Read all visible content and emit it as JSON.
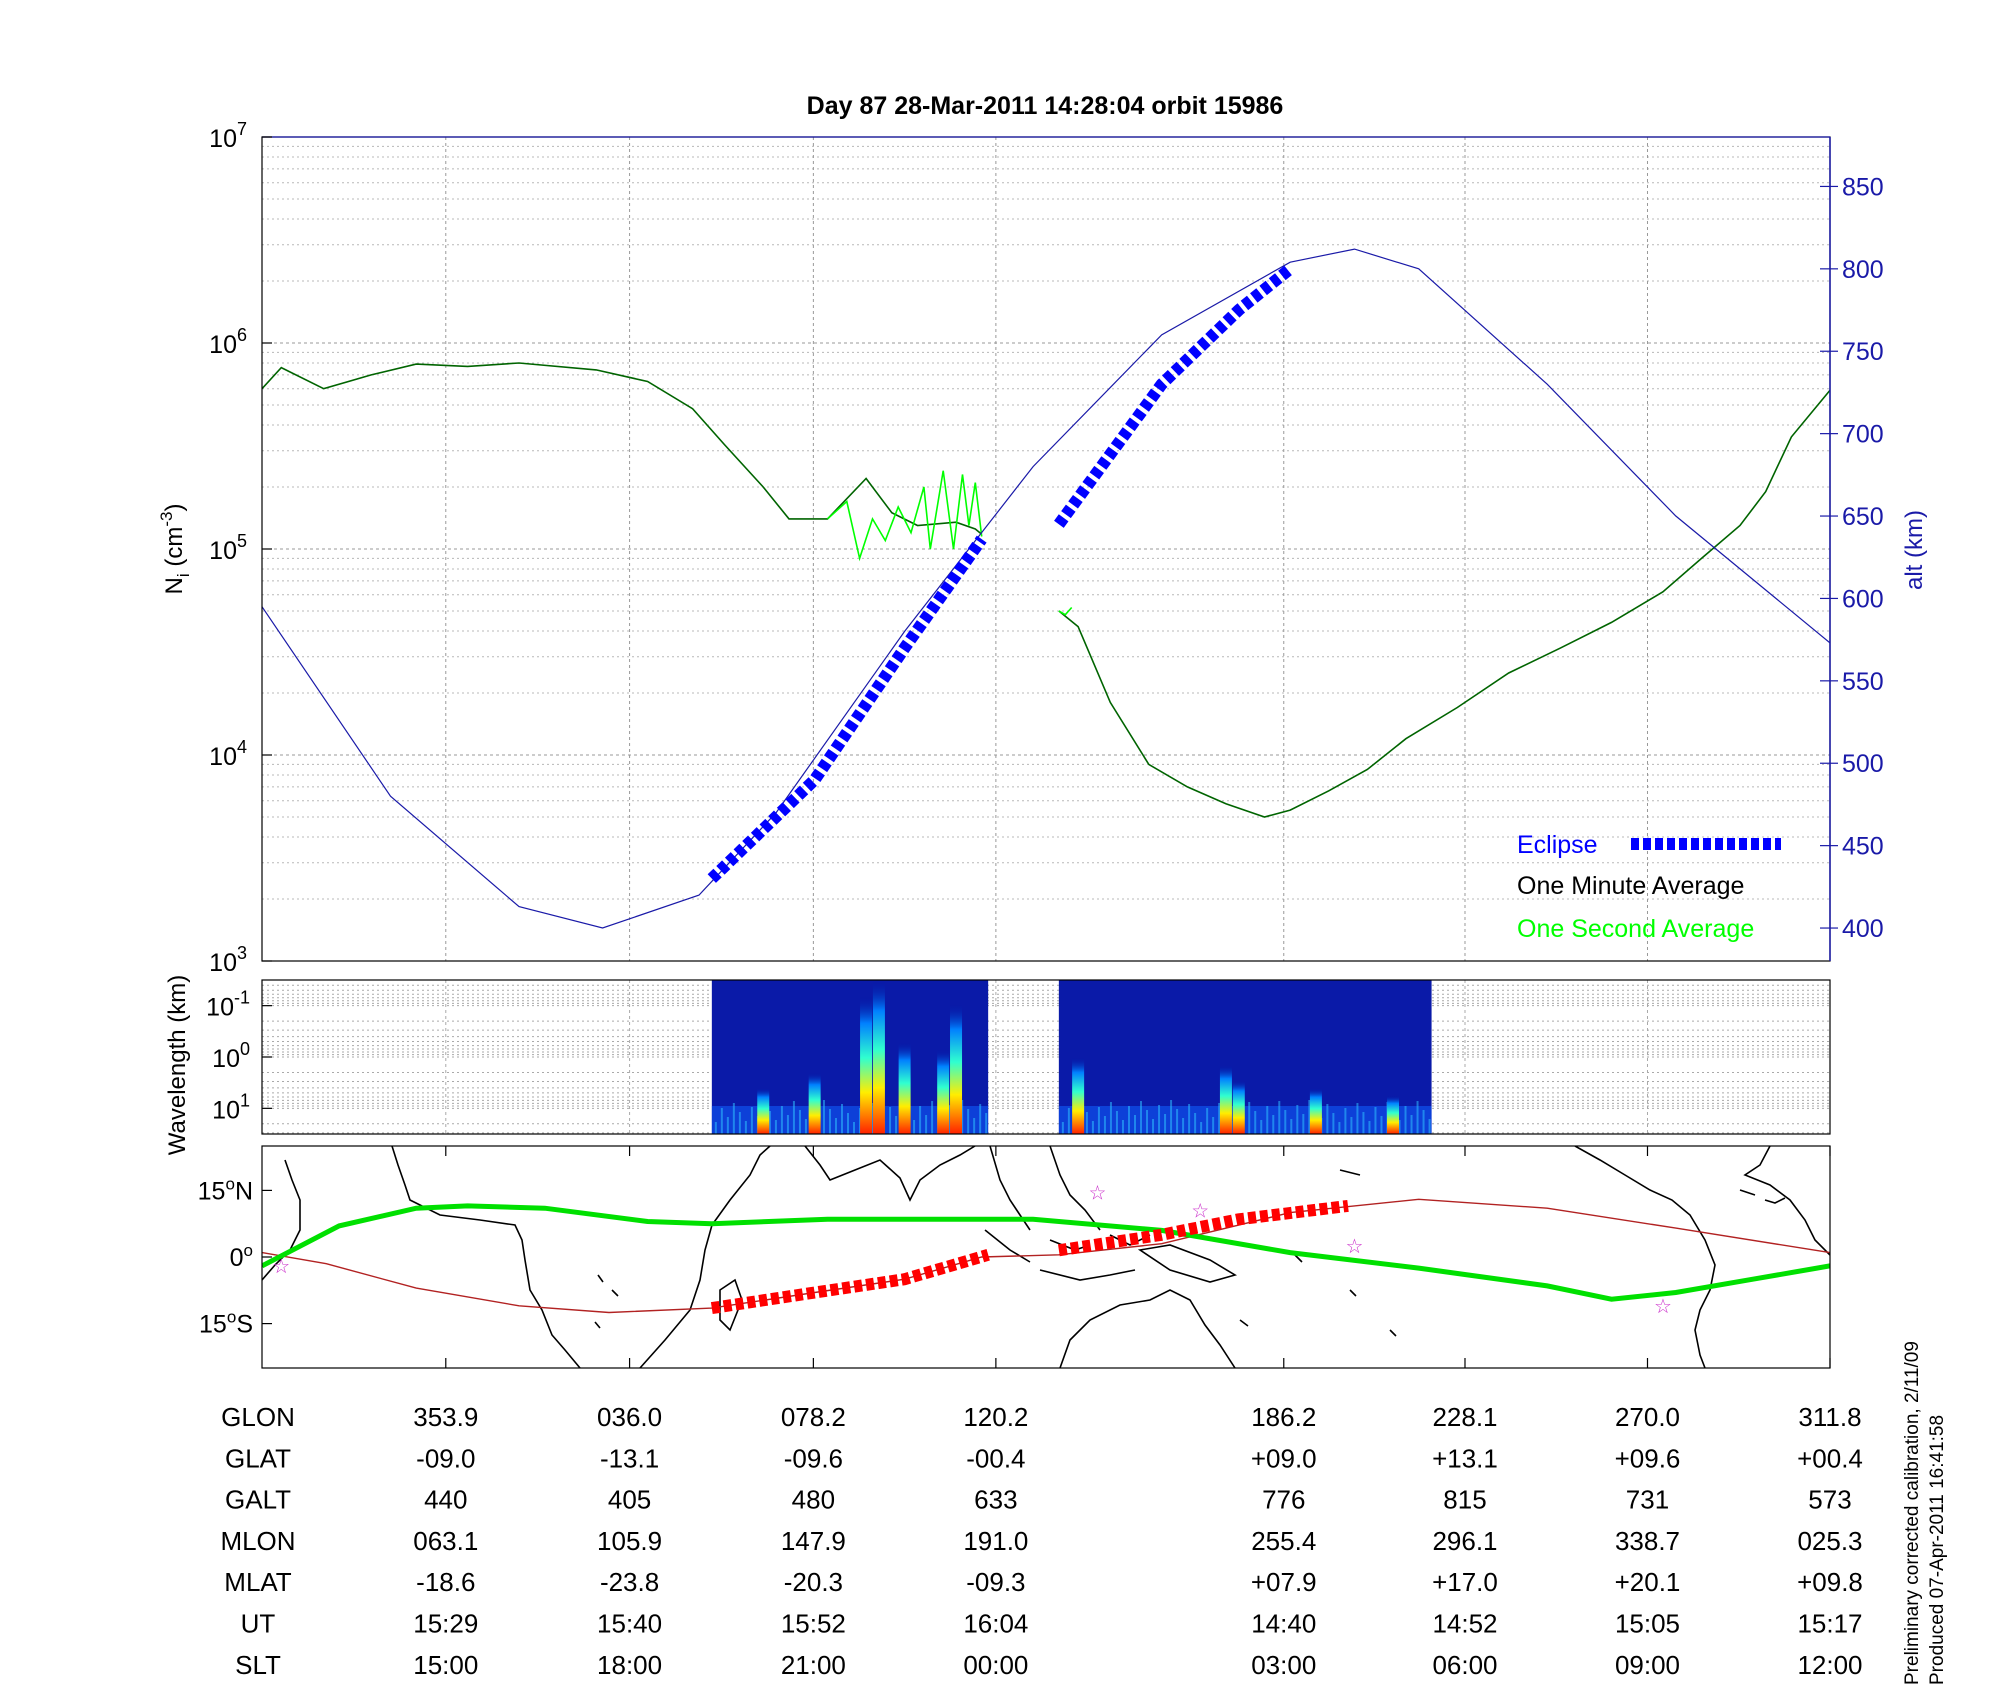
{
  "title": "Day 87  28-Mar-2011 14:28:04   orbit 15986",
  "footnote": {
    "line1": "Preliminary corrected calibration, 2/11/09",
    "line2": "Produced 07-Apr-2011 16:41:58"
  },
  "colors": {
    "eclipse": "#0000ff",
    "one_minute": "#006400",
    "one_second": "#00ff00",
    "altitude": "#1a1aa8",
    "track_day": "#00e000",
    "track_mag": "#b22222",
    "eclipse_track": "#ff0000",
    "stars": "#cc33cc"
  },
  "chart_data": [
    {
      "id": "density",
      "type": "line",
      "ylabel_main": "N",
      "ylabel_sub": "i",
      "ylabel_unit_open": " (cm",
      "ylabel_unit_exp": "-3",
      "ylabel_unit_close": ")",
      "y_scale": "log",
      "ylim": [
        1000,
        10000000
      ],
      "y_ticks": [
        {
          "base": "10",
          "exp": "3",
          "value": 1000
        },
        {
          "base": "10",
          "exp": "4",
          "value": 10000
        },
        {
          "base": "10",
          "exp": "5",
          "value": 100000
        },
        {
          "base": "10",
          "exp": "6",
          "value": 1000000
        },
        {
          "base": "10",
          "exp": "7",
          "value": 10000000
        }
      ],
      "y2label": "alt (km)",
      "y2lim": [
        380,
        880
      ],
      "y2_ticks": [
        "400",
        "450",
        "500",
        "550",
        "600",
        "650",
        "700",
        "750",
        "800",
        "850"
      ],
      "grid": true,
      "legend_position": "bottom-right",
      "legend": [
        {
          "label": "Eclipse",
          "key": "eclipse"
        },
        {
          "label": "One Minute Average",
          "key": "one_minute"
        },
        {
          "label": "One Second Average",
          "key": "one_second"
        }
      ],
      "series": [
        {
          "key": "one_minute",
          "segments": [
            [
              [
                0,
                600000
              ],
              [
                0.15,
                760000
              ],
              [
                0.48,
                600000
              ],
              [
                0.85,
                700000
              ],
              [
                1.2,
                790000
              ],
              [
                1.6,
                770000
              ],
              [
                2.0,
                800000
              ],
              [
                2.6,
                740000
              ],
              [
                3.0,
                650000
              ],
              [
                3.35,
                480000
              ],
              [
                3.6,
                320000
              ],
              [
                3.9,
                200000
              ],
              [
                4.1,
                140000
              ],
              [
                4.4,
                140000
              ],
              [
                4.7,
                220000
              ],
              [
                4.9,
                150000
              ],
              [
                5.1,
                130000
              ],
              [
                5.4,
                135000
              ],
              [
                5.55,
                125000
              ],
              [
                5.6,
                118000
              ]
            ],
            [
              [
                6.2,
                50000
              ],
              [
                6.35,
                42000
              ],
              [
                6.6,
                18000
              ],
              [
                6.9,
                9000
              ],
              [
                7.2,
                7000
              ],
              [
                7.5,
                5800
              ],
              [
                7.8,
                5000
              ],
              [
                8.0,
                5400
              ],
              [
                8.3,
                6700
              ],
              [
                8.6,
                8500
              ],
              [
                8.9,
                12000
              ],
              [
                9.3,
                17000
              ],
              [
                9.7,
                25000
              ],
              [
                10.1,
                33000
              ],
              [
                10.5,
                44000
              ],
              [
                10.9,
                62000
              ],
              [
                11.2,
                90000
              ],
              [
                11.5,
                130000
              ],
              [
                11.7,
                190000
              ],
              [
                11.9,
                350000
              ],
              [
                12.2,
                590000
              ]
            ]
          ]
        },
        {
          "key": "one_second",
          "segments": [
            [
              [
                4.4,
                140000
              ],
              [
                4.55,
                170000
              ],
              [
                4.65,
                90000
              ],
              [
                4.75,
                140000
              ],
              [
                4.85,
                110000
              ],
              [
                4.95,
                160000
              ],
              [
                5.05,
                120000
              ],
              [
                5.15,
                200000
              ],
              [
                5.2,
                100000
              ],
              [
                5.3,
                240000
              ],
              [
                5.38,
                100000
              ],
              [
                5.45,
                230000
              ],
              [
                5.5,
                130000
              ],
              [
                5.55,
                210000
              ],
              [
                5.6,
                115000
              ]
            ],
            [
              [
                6.2,
                50000
              ],
              [
                6.25,
                48000
              ],
              [
                6.3,
                52000
              ]
            ]
          ]
        },
        {
          "key": "altitude",
          "axis": "alt",
          "points": [
            [
              0,
              595
            ],
            [
              1.0,
              480
            ],
            [
              2.0,
              413
            ],
            [
              2.65,
              400
            ],
            [
              3.4,
              420
            ],
            [
              4.0,
              470
            ],
            [
              5.0,
              580
            ],
            [
              6.0,
              680
            ],
            [
              7.0,
              760
            ],
            [
              8.0,
              804
            ],
            [
              8.5,
              812
            ],
            [
              9.0,
              800
            ],
            [
              10.0,
              730
            ],
            [
              11.0,
              650
            ],
            [
              12.2,
              573
            ]
          ]
        },
        {
          "key": "eclipse",
          "axis": "alt",
          "segments": [
            [
              [
                3.5,
                430
              ],
              [
                4.3,
                490
              ],
              [
                5.0,
                570
              ],
              [
                5.6,
                636
              ]
            ],
            [
              [
                6.2,
                645
              ],
              [
                7.0,
                730
              ],
              [
                7.6,
                775
              ],
              [
                8.0,
                800
              ]
            ]
          ]
        }
      ]
    },
    {
      "id": "spectrogram",
      "type": "heatmap",
      "ylabel": "Wavelength (km)",
      "y_ticks": [
        {
          "base": "10",
          "exp": "-1",
          "value": 0.1
        },
        {
          "base": "10",
          "exp": "0",
          "value": 1
        },
        {
          "base": "10",
          "exp": "1",
          "value": 10
        }
      ],
      "blocks": [
        {
          "start": 3.5,
          "end": 5.65,
          "bursts": [
            [
              4.7,
              0.9
            ],
            [
              4.8,
              1.0
            ],
            [
              5.0,
              0.6
            ],
            [
              5.4,
              0.85
            ],
            [
              5.3,
              0.55
            ],
            [
              4.3,
              0.4
            ],
            [
              3.9,
              0.3
            ]
          ]
        },
        {
          "start": 6.2,
          "end": 9.1,
          "bursts": [
            [
              6.35,
              0.5
            ],
            [
              7.5,
              0.45
            ],
            [
              7.6,
              0.35
            ],
            [
              8.2,
              0.3
            ],
            [
              8.8,
              0.25
            ]
          ]
        }
      ]
    },
    {
      "id": "map",
      "type": "line",
      "y_ticks": [
        {
          "deg": "15",
          "hemi": "N",
          "value": 15
        },
        {
          "deg": "0",
          "hemi": "",
          "value": 0
        },
        {
          "deg": "15",
          "hemi": "S",
          "value": -15
        }
      ],
      "ylim": [
        -25,
        25
      ],
      "day_track": [
        [
          0,
          -2
        ],
        [
          0.6,
          7
        ],
        [
          1.2,
          11
        ],
        [
          1.6,
          11.5
        ],
        [
          2.2,
          11
        ],
        [
          3.0,
          8
        ],
        [
          3.5,
          7.5
        ],
        [
          4.4,
          8.5
        ],
        [
          5.3,
          8.5
        ],
        [
          6.0,
          8.5
        ],
        [
          7.0,
          6
        ],
        [
          8.0,
          1
        ],
        [
          9.0,
          -2.5
        ],
        [
          10.0,
          -6.5
        ],
        [
          10.5,
          -9.5
        ],
        [
          11.0,
          -8
        ],
        [
          11.6,
          -5
        ],
        [
          12.2,
          -2
        ]
      ],
      "mag_track": [
        [
          0,
          1
        ],
        [
          0.5,
          -1.5
        ],
        [
          1.2,
          -7
        ],
        [
          2.0,
          -11
        ],
        [
          2.7,
          -12.5
        ],
        [
          3.5,
          -11.5
        ],
        [
          4.3,
          -8
        ],
        [
          5.0,
          -5
        ],
        [
          5.6,
          0
        ],
        [
          6.2,
          0.5
        ],
        [
          7.0,
          3
        ],
        [
          8.0,
          10
        ],
        [
          9.0,
          13
        ],
        [
          10.0,
          11
        ],
        [
          11.0,
          6.5
        ],
        [
          12.2,
          1
        ]
      ],
      "eclipse_track": [
        [
          [
            3.5,
            -11.5
          ],
          [
            4.3,
            -8
          ],
          [
            5.0,
            -5
          ],
          [
            5.65,
            0.5
          ]
        ],
        [
          [
            6.2,
            1.5
          ],
          [
            7.0,
            5
          ],
          [
            7.6,
            8.5
          ],
          [
            8.45,
            11.5
          ]
        ]
      ],
      "stars": [
        [
          0.15,
          -2
        ],
        [
          6.5,
          14.5
        ],
        [
          7.3,
          10.5
        ],
        [
          8.5,
          2.5
        ],
        [
          10.9,
          -11
        ]
      ]
    }
  ],
  "table": {
    "labels": [
      "GLON",
      "GLAT",
      "GALT",
      "MLON",
      "MLAT",
      "UT",
      "SLT"
    ],
    "columns": [
      {
        "x": 1.43,
        "values": [
          "353.9",
          "-09.0",
          "440",
          "063.1",
          "-18.6",
          "15:29",
          "15:00"
        ]
      },
      {
        "x": 2.86,
        "values": [
          "036.0",
          "-13.1",
          "405",
          "105.9",
          "-23.8",
          "15:40",
          "18:00"
        ]
      },
      {
        "x": 4.29,
        "values": [
          "078.2",
          "-09.6",
          "480",
          "147.9",
          "-20.3",
          "15:52",
          "21:00"
        ]
      },
      {
        "x": 5.71,
        "values": [
          "120.2",
          "-00.4",
          "633",
          "191.0",
          "-09.3",
          "16:04",
          "00:00"
        ]
      },
      {
        "x": 7.95,
        "values": [
          "186.2",
          "+09.0",
          "776",
          "255.4",
          "+07.9",
          "14:40",
          "03:00"
        ]
      },
      {
        "x": 9.36,
        "values": [
          "228.1",
          "+13.1",
          "815",
          "296.1",
          "+17.0",
          "14:52",
          "06:00"
        ]
      },
      {
        "x": 10.78,
        "values": [
          "270.0",
          "+09.6",
          "731",
          "338.7",
          "+20.1",
          "15:05",
          "09:00"
        ]
      },
      {
        "x": 12.2,
        "values": [
          "311.8",
          "+00.4",
          "573",
          "025.3",
          "+09.8",
          "15:17",
          "12:00"
        ]
      }
    ]
  }
}
